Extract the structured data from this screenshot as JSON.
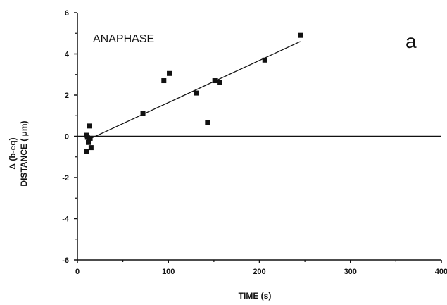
{
  "chart_data": {
    "type": "scatter",
    "annotation": "ANAPHASE",
    "panel_letter": "a",
    "xlabel": "TIME (s)",
    "ylabel_line1": "Δ (b-eq)",
    "ylabel_line2": "DISTANCE ( μm)",
    "xlim": [
      0,
      400
    ],
    "ylim": [
      -6,
      6
    ],
    "xticks": [
      0,
      100,
      200,
      300,
      400
    ],
    "yticks": [
      -6,
      -4,
      -2,
      0,
      2,
      4,
      6
    ],
    "grid": false,
    "zero_line": true,
    "points": [
      {
        "x": 10,
        "y": 0.05
      },
      {
        "x": 11,
        "y": -0.05
      },
      {
        "x": 12,
        "y": -0.3
      },
      {
        "x": 10,
        "y": -0.75
      },
      {
        "x": 13,
        "y": 0.5
      },
      {
        "x": 14,
        "y": -0.1
      },
      {
        "x": 15,
        "y": -0.55
      },
      {
        "x": 72,
        "y": 1.1
      },
      {
        "x": 95,
        "y": 2.7
      },
      {
        "x": 101,
        "y": 3.05
      },
      {
        "x": 131,
        "y": 2.1
      },
      {
        "x": 143,
        "y": 0.65
      },
      {
        "x": 151,
        "y": 2.7
      },
      {
        "x": 156,
        "y": 2.6
      },
      {
        "x": 206,
        "y": 3.7
      },
      {
        "x": 245,
        "y": 4.9
      }
    ],
    "fit_line": {
      "x": [
        10,
        245
      ],
      "y": [
        -0.2,
        4.6
      ]
    },
    "colors": {
      "marker": "#111111",
      "line": "#111111",
      "axis": "#111111"
    }
  }
}
